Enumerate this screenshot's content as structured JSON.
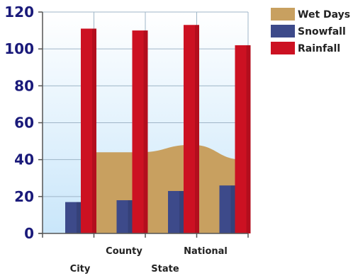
{
  "chart_data": {
    "type": "bar",
    "categories": [
      "City",
      "County",
      "State",
      "National"
    ],
    "series": [
      {
        "name": "Wet Days",
        "type": "area",
        "color": "#c8a060",
        "values": [
          44,
          44,
          48,
          40
        ]
      },
      {
        "name": "Snowfall",
        "type": "bar",
        "color": "#3d4a8a",
        "values": [
          17,
          18,
          23,
          26
        ]
      },
      {
        "name": "Rainfall",
        "type": "bar",
        "color": "#cc1122",
        "values": [
          111,
          110,
          113,
          102
        ]
      }
    ],
    "ylim": [
      0,
      120
    ],
    "yticks": [
      0,
      20,
      40,
      60,
      80,
      100,
      120
    ],
    "grid": true,
    "legend_position": "top-right",
    "title": "",
    "xlabel": "",
    "ylabel": ""
  }
}
